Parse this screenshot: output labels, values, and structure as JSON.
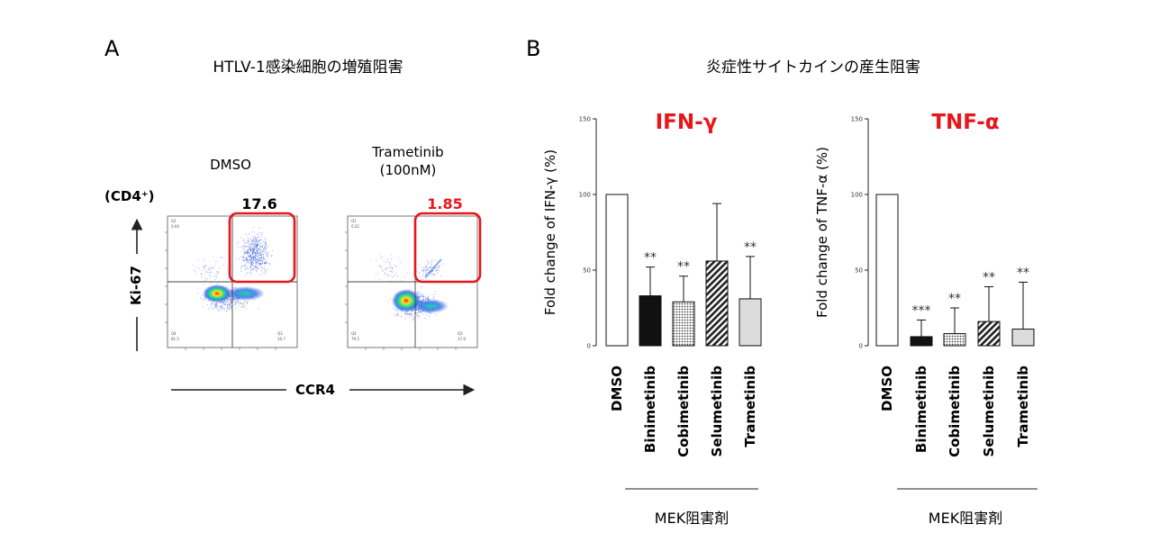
{
  "panelA": {
    "letter": "A",
    "title": "HTLV-1感染細胞の増殖阻害",
    "population_label": "(CD4⁺)",
    "y_marker": "Ki-67",
    "x_marker": "CCR4",
    "plots": [
      {
        "condition": "DMSO",
        "condition_line2": "",
        "gated_percent": "17.6",
        "gate_value_color": "#111111",
        "quadrants": {
          "q1": "Q1",
          "q1v": "0.64",
          "q3": "Q4",
          "q3v": "81.5",
          "q4": "Q3",
          "q4v": "16.7"
        }
      },
      {
        "condition": "Trametinib",
        "condition_line2": "(100nM)",
        "gated_percent": "1.85",
        "gate_value_color": "#e8151b",
        "quadrants": {
          "q1": "Q1",
          "q1v": "0.22",
          "q3": "Q4",
          "q3v": "79.5",
          "q4": "Q3",
          "q4v": "17.9"
        }
      }
    ],
    "gate_color": "#e8151b"
  },
  "panelB": {
    "letter": "B",
    "title": "炎症性サイトカインの産生阻害",
    "group_label": "MEK阻害剤",
    "accent_color": "#e8151b"
  },
  "chart_data": [
    {
      "type": "bar",
      "title": "IFN-γ",
      "ylabel": "Fold change of IFN-γ (%)",
      "ylim": [
        0,
        150
      ],
      "yticks": [
        "0",
        "50",
        "100",
        "150"
      ],
      "categories": [
        "DMSO",
        "Binimetinib",
        "Cobimetinib",
        "Selumetinib",
        "Trametinib"
      ],
      "values": [
        100,
        33,
        29,
        56,
        31
      ],
      "errors": [
        0,
        19,
        17,
        38,
        28
      ],
      "significance": [
        "",
        "**",
        "**",
        "",
        "**"
      ],
      "fills": [
        "white",
        "black",
        "dots",
        "stripes",
        "fine"
      ]
    },
    {
      "type": "bar",
      "title": "TNF-α",
      "ylabel": "Fold change of TNF-α (%)",
      "ylim": [
        0,
        150
      ],
      "yticks": [
        "0",
        "50",
        "100",
        "150"
      ],
      "categories": [
        "DMSO",
        "Binimetinib",
        "Cobimetinib",
        "Selumetinib",
        "Trametinib"
      ],
      "values": [
        100,
        6,
        8,
        16,
        11
      ],
      "errors": [
        0,
        11,
        17,
        23,
        31
      ],
      "significance": [
        "",
        "***",
        "**",
        "**",
        "**"
      ],
      "fills": [
        "white",
        "black",
        "dots",
        "stripes",
        "fine"
      ]
    }
  ]
}
